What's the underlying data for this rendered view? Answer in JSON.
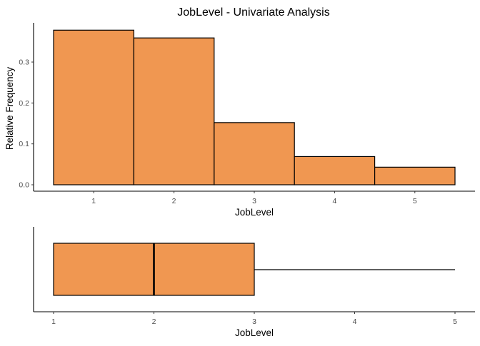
{
  "chart_data": [
    {
      "type": "bar",
      "title": "JobLevel - Univariate Analysis",
      "xlabel": "JobLevel",
      "ylabel": "Relative Frequency",
      "categories": [
        "1",
        "2",
        "3",
        "4",
        "5"
      ],
      "values": [
        0.378,
        0.359,
        0.152,
        0.069,
        0.043
      ],
      "ylim": [
        0,
        0.38
      ],
      "yticks": [
        "0.0",
        "0.1",
        "0.2",
        "0.3"
      ],
      "grid": false,
      "fill_color": "#F09751"
    },
    {
      "type": "boxplot",
      "xlabel": "JobLevel",
      "xticks": [
        "1",
        "2",
        "3",
        "4",
        "5"
      ],
      "xlim": [
        1,
        5
      ],
      "min": 1,
      "q1": 1,
      "median": 2,
      "q3": 3,
      "max": 5,
      "grid": false,
      "fill_color": "#F09751"
    }
  ]
}
